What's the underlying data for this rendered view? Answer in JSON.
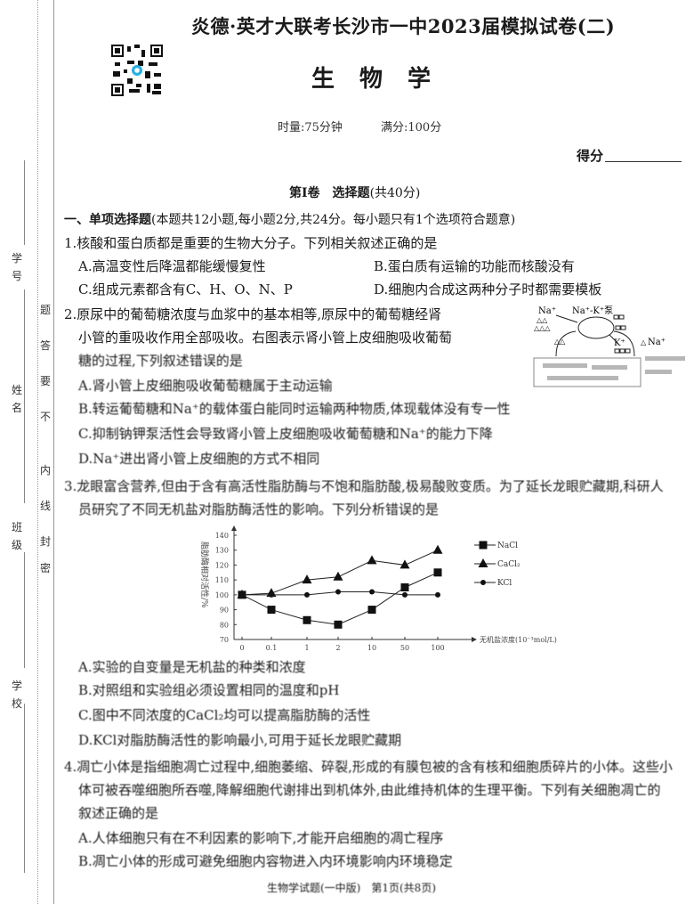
{
  "header": {
    "title": "炎德·英才大联考长沙市一中2023届模拟试卷(二)",
    "subject": "生物学",
    "time": "时量:75分钟",
    "full_score": "满分:100分",
    "score_label": "得分",
    "qr_icon": "qr-code-icon"
  },
  "margin": {
    "fields": [
      "学号",
      "姓名",
      "班级",
      "学校"
    ],
    "seal_text": [
      "题",
      "答",
      "要",
      "不",
      "内",
      "线",
      "封",
      "密"
    ]
  },
  "section": {
    "title": "第Ⅰ卷　选择题",
    "points": "(共40分)"
  },
  "part1": {
    "title": "一、单项选择题",
    "desc": "(本题共12小题,每小题2分,共24分。每小题只有1个选项符合题意)"
  },
  "questions": [
    {
      "stem": [
        "1.核酸和蛋白质都是重要的生物大分子。下列相关叙述正确的是"
      ],
      "options": [
        "A.高温变性后降温都能缓慢复性",
        "B.蛋白质有运输的功能而核酸没有",
        "C.组成元素都含有C、H、O、N、P",
        "D.细胞内合成这两种分子时都需要模板"
      ]
    },
    {
      "stem": [
        "2.原尿中的葡萄糖浓度与血浆中的基本相等,原尿中的葡萄糖经肾",
        "小管的重吸收作用全部吸收。右图表示肾小管上皮细胞吸收葡萄",
        "糖的过程,下列叙述错误的是"
      ],
      "options": [
        "A.肾小管上皮细胞吸收葡萄糖属于主动运输",
        "B.转运葡萄糖和Na⁺的载体蛋白能同时运输两种物质,体现载体没有专一性",
        "C.抑制钠钾泵活性会导致肾小管上皮细胞吸收葡萄糖和Na⁺的能力下降",
        "D.Na⁺进出肾小管上皮细胞的方式不相同"
      ],
      "diagram": {
        "labels": [
          "Na⁺",
          "Na⁺-K⁺泵",
          "K⁺",
          "Na⁺"
        ]
      }
    },
    {
      "stem": [
        "3.龙眼富含营养,但由于含有高活性脂肪酶与不饱和脂肪酸,极易酸败变质。为了延长龙眼贮藏期,科研人",
        "员研究了不同无机盐对脂肪酶活性的影响。下列分析错误的是"
      ],
      "options": [
        "A.实验的自变量是无机盐的种类和浓度",
        "B.对照组和实验组必须设置相同的温度和pH",
        "C.图中不同浓度的CaCl₂均可以提高脂肪酶的活性",
        "D.KCl对脂肪酶活性的影响最小,可用于延长龙眼贮藏期"
      ]
    },
    {
      "stem": [
        "4.凋亡小体是指细胞凋亡过程中,细胞萎缩、碎裂,形成的有膜包被的含有核和细胞质碎片的小体。这些小",
        "体可被吞噬细胞所吞噬,降解细胞代谢排出到机体外,由此维持机体的生理平衡。下列有关细胞凋亡的",
        "叙述正确的是"
      ],
      "options": [
        "A.人体细胞只有在不利因素的影响下,才能开启细胞的凋亡程序",
        "B.凋亡小体的形成可避免细胞内容物进入内环境影响内环境稳定"
      ]
    }
  ],
  "chart_data": {
    "type": "line",
    "ylabel": "脂肪酶相对活性/%",
    "xlabel": "无机盐浓度(10⁻³mol/L)",
    "categories": [
      "0",
      "0.1",
      "1",
      "2",
      "10",
      "50",
      "100"
    ],
    "y_ticks": [
      "70",
      "80",
      "90",
      "100",
      "110",
      "120",
      "130",
      "140"
    ],
    "ylim": [
      70,
      140
    ],
    "legend_position": "right",
    "series": [
      {
        "name": "NaCl",
        "marker": "square",
        "values": [
          100,
          90,
          83,
          80,
          90,
          105,
          115
        ]
      },
      {
        "name": "CaCl₂",
        "marker": "triangle",
        "values": [
          100,
          101,
          110,
          112,
          123,
          120,
          130
        ]
      },
      {
        "name": "KCl",
        "marker": "circle",
        "values": [
          100,
          100,
          100,
          102,
          102,
          100,
          100
        ]
      }
    ]
  },
  "footer": "生物学试题(一中版)　第1页(共8页)"
}
